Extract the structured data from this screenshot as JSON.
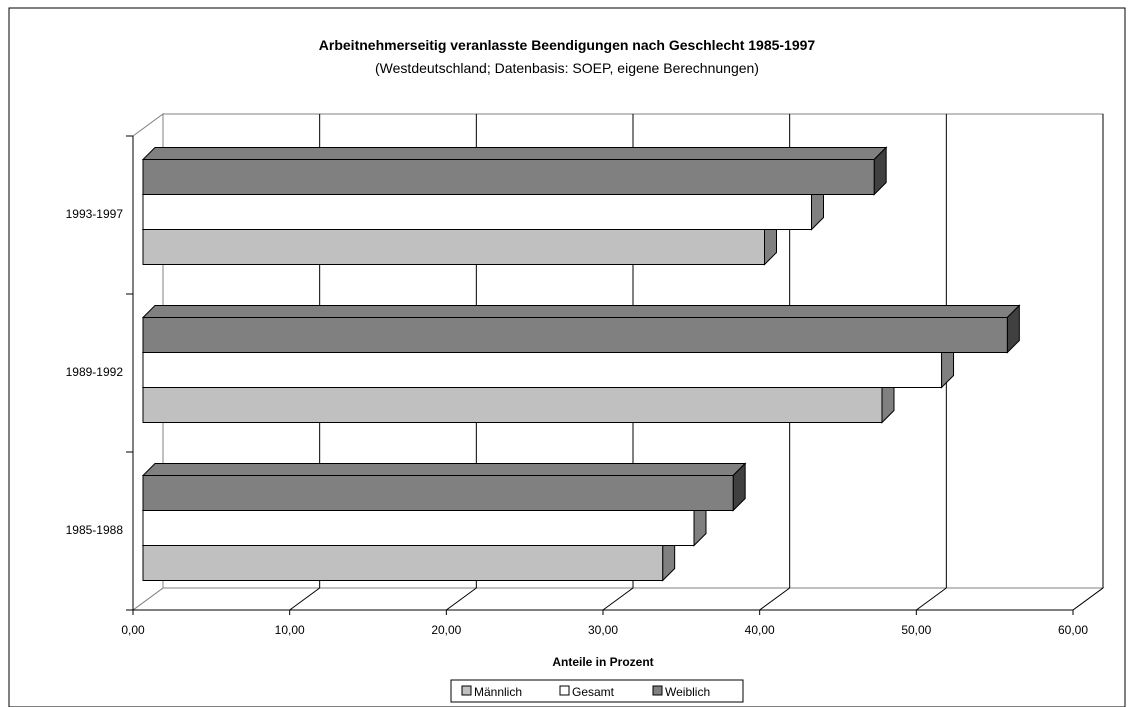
{
  "chart_data": {
    "type": "bar",
    "orientation": "horizontal",
    "title": "Arbeitnehmerseitig veranlasste Beendigungen nach Geschlecht 1985-1997",
    "subtitle": "(Westdeutschland; Datenbasis: SOEP, eigene Berechnungen)",
    "xlabel": "Anteile in Prozent",
    "ylabel": "",
    "xlim": [
      0,
      60
    ],
    "xticks": [
      0,
      10,
      20,
      30,
      40,
      50,
      60
    ],
    "xtick_labels": [
      "0,00",
      "10,00",
      "20,00",
      "30,00",
      "40,00",
      "50,00",
      "60,00"
    ],
    "categories": [
      "1985-1988",
      "1989-1992",
      "1993-1997"
    ],
    "series": [
      {
        "name": "Männlich",
        "color": "#c0c0c0",
        "values": [
          34.0,
          48.0,
          40.5
        ]
      },
      {
        "name": "Gesamt",
        "color": "#ffffff",
        "values": [
          36.0,
          51.8,
          43.5
        ]
      },
      {
        "name": "Weiblich",
        "color": "#808080",
        "values": [
          38.5,
          56.0,
          47.5
        ]
      }
    ],
    "grid": true,
    "legend_position": "bottom"
  }
}
